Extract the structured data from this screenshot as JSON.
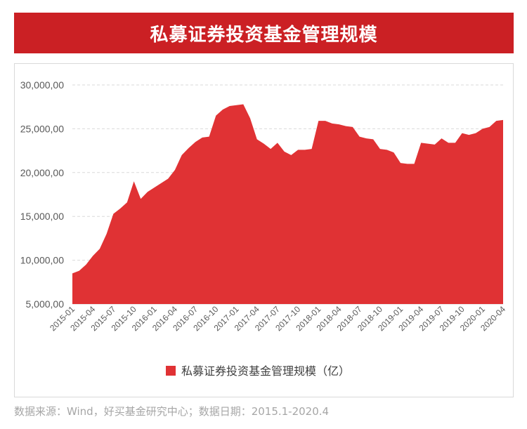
{
  "title": "私募证券投资基金管理规模",
  "source_note": "数据来源：Wind，好买基金研究中心；数据日期：2015.1-2020.4",
  "colors": {
    "banner": "#cb2024",
    "area": "#e03234",
    "grid": "#d9d9d9",
    "text": "#595959"
  },
  "chart_data": {
    "type": "area",
    "title": "私募证券投资基金管理规模",
    "xlabel": "",
    "ylabel": "",
    "ylim": [
      5000,
      30000
    ],
    "yticks": [
      "5,000,00",
      "10,000,00",
      "15,000,00",
      "20,000,00",
      "25,000,00",
      "30,000,00"
    ],
    "ytick_values": [
      5000,
      10000,
      15000,
      20000,
      25000,
      30000
    ],
    "xtick_labels": [
      "2015-01",
      "2015-04",
      "2015-07",
      "2015-10",
      "2016-01",
      "2016-04",
      "2016-07",
      "2016-10",
      "2017-01",
      "2017-04",
      "2017-07",
      "2017-10",
      "2018-01",
      "2018-04",
      "2018-07",
      "2018-10",
      "2019-01",
      "2019-04",
      "2019-07",
      "2019-10",
      "2020-01",
      "2020-04"
    ],
    "x": [
      "2015-01",
      "2015-02",
      "2015-03",
      "2015-04",
      "2015-05",
      "2015-06",
      "2015-07",
      "2015-08",
      "2015-09",
      "2015-10",
      "2015-11",
      "2015-12",
      "2016-01",
      "2016-02",
      "2016-03",
      "2016-04",
      "2016-05",
      "2016-06",
      "2016-07",
      "2016-08",
      "2016-09",
      "2016-10",
      "2016-11",
      "2016-12",
      "2017-01",
      "2017-02",
      "2017-03",
      "2017-04",
      "2017-05",
      "2017-06",
      "2017-07",
      "2017-08",
      "2017-09",
      "2017-10",
      "2017-11",
      "2017-12",
      "2018-01",
      "2018-02",
      "2018-03",
      "2018-04",
      "2018-05",
      "2018-06",
      "2018-07",
      "2018-08",
      "2018-09",
      "2018-10",
      "2018-11",
      "2018-12",
      "2019-01",
      "2019-02",
      "2019-03",
      "2019-04",
      "2019-05",
      "2019-06",
      "2019-07",
      "2019-08",
      "2019-09",
      "2019-10",
      "2019-11",
      "2019-12",
      "2020-01",
      "2020-02",
      "2020-03",
      "2020-04"
    ],
    "series": [
      {
        "name": "私募证券投资基金管理规模（亿）",
        "values": [
          8500,
          8800,
          9500,
          10500,
          11300,
          13000,
          15300,
          15900,
          16600,
          19000,
          17000,
          17800,
          18300,
          18800,
          19300,
          20300,
          22000,
          22800,
          23500,
          24000,
          24100,
          26500,
          27200,
          27600,
          27700,
          27800,
          26200,
          23800,
          23300,
          22700,
          23400,
          22400,
          22000,
          22600,
          22600,
          22700,
          25900,
          25900,
          25600,
          25500,
          25300,
          25200,
          24100,
          23900,
          23800,
          22700,
          22600,
          22300,
          21100,
          21000,
          21000,
          23400,
          23300,
          23200,
          23900,
          23400,
          23400,
          24500,
          24300,
          24500,
          25000,
          25200,
          25900,
          26000
        ]
      }
    ],
    "legend": "bottom-center",
    "grid": true
  }
}
